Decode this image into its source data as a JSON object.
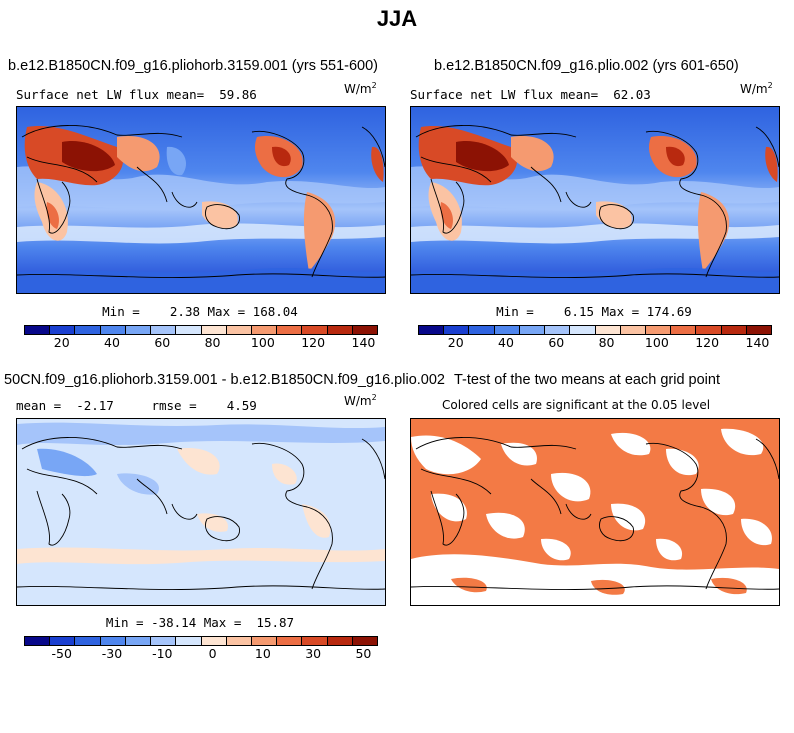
{
  "title": "JJA",
  "panels": [
    {
      "title": "b.e12.B1850CN.f09_g16.pliohorb.3159.001 (yrs 551-600)",
      "subtitle": "Surface net LW flux mean=  59.86",
      "units": "W/m",
      "units_sup": "2",
      "minmax": "Min =    2.38 Max = 168.04"
    },
    {
      "title": "b.e12.B1850CN.f09_g16.plio.002 (yrs 601-650)",
      "subtitle": "Surface net LW flux mean=  62.03",
      "units": "W/m",
      "units_sup": "2",
      "minmax": "Min =    6.15 Max = 174.69"
    },
    {
      "title": "50CN.f09_g16.pliohorb.3159.001 - b.e12.B1850CN.f09_g16.plio.002",
      "subtitle": "mean =  -2.17     rmse =    4.59",
      "units": "W/m",
      "units_sup": "2",
      "minmax": "Min = -38.14 Max =  15.87"
    },
    {
      "title": "T-test of the two means at each grid point",
      "subtitle": "Colored cells are significant at the 0.05 level",
      "units": "",
      "units_sup": "",
      "minmax": ""
    }
  ],
  "colorbar_abs": {
    "colors": [
      "#08088a",
      "#1a3fd0",
      "#2f63e0",
      "#4f86ee",
      "#78a6f5",
      "#a5c4fa",
      "#d5e6fd",
      "#fde4d2",
      "#fbc3a3",
      "#f59a70",
      "#ec6e44",
      "#d84a26",
      "#b8290f",
      "#8c1204"
    ],
    "tick_labels": [
      "20",
      "40",
      "60",
      "80",
      "100",
      "120",
      "140"
    ]
  },
  "colorbar_diff": {
    "colors": [
      "#08088a",
      "#1a3fd0",
      "#2f63e0",
      "#4f86ee",
      "#78a6f5",
      "#a5c4fa",
      "#d5e6fd",
      "#fde4d2",
      "#fbc3a3",
      "#f59a70",
      "#ec6e44",
      "#d84a26",
      "#b8290f",
      "#8c1204"
    ],
    "tick_labels": [
      "-50",
      "-30",
      "-10",
      "0",
      "10",
      "30",
      "50"
    ]
  },
  "colors": {
    "ocean_cold": "#2f63e0",
    "ocean_mid": "#78a6f5",
    "land_hot": "#d84a26",
    "land_warm": "#fbc3a3",
    "diff_bg": "#d5e6fd",
    "diff_pos": "#fde4d2",
    "diff_neg": "#a5c4fa",
    "ttest": "#f37a45"
  }
}
